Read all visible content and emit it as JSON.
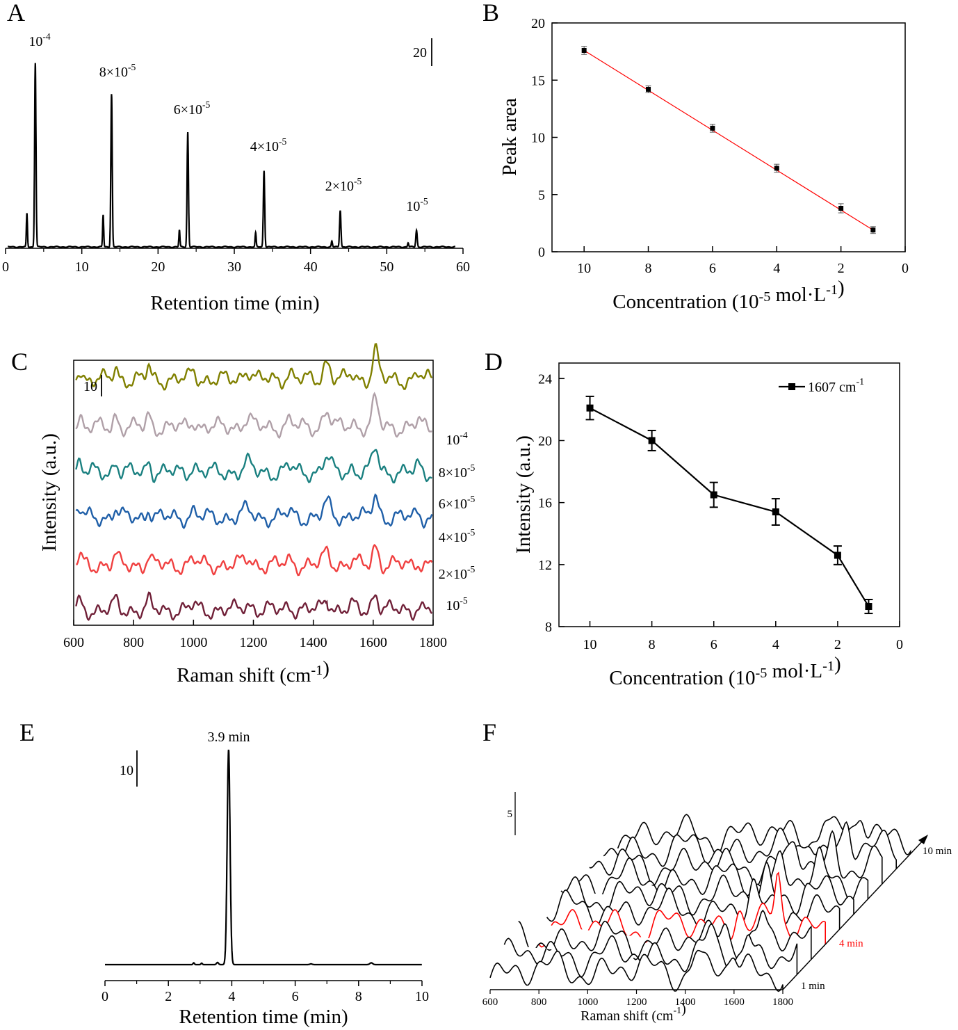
{
  "panels": [
    {
      "id": "A",
      "letter": "A",
      "type": "line",
      "xlabel": "Retention time (min)",
      "ylabel": "",
      "xlim": [
        0,
        60
      ],
      "xticks": [
        "0",
        "10",
        "20",
        "30",
        "40",
        "50",
        "60"
      ],
      "scale_bar": "20",
      "peaks": [
        {
          "label": "10",
          "exp": "-4",
          "time": 3.9,
          "height": 26.5,
          "pre_time": 2.8,
          "pre_height": 4.8
        },
        {
          "label": "8×10",
          "exp": "-5",
          "time": 13.9,
          "height": 22.0,
          "pre_time": 12.8,
          "pre_height": 4.6
        },
        {
          "label": "6×10",
          "exp": "-5",
          "time": 23.9,
          "height": 16.5,
          "pre_time": 22.8,
          "pre_height": 2.4
        },
        {
          "label": "4×10",
          "exp": "-5",
          "time": 33.9,
          "height": 11.0,
          "pre_time": 32.8,
          "pre_height": 2.0
        },
        {
          "label": "2×10",
          "exp": "-5",
          "time": 43.9,
          "height": 5.3,
          "pre_time": 42.8,
          "pre_height": 0.8
        },
        {
          "label": "10",
          "exp": "-5",
          "time": 53.9,
          "height": 2.4,
          "pre_time": 52.8,
          "pre_height": 0.6
        }
      ]
    },
    {
      "id": "B",
      "letter": "B",
      "type": "scatter",
      "xlabel": "Concentration (10",
      "xlabel_exp": "-5",
      "xlabel_mid": " mol·L",
      "xlabel_exp2": "-1",
      "xlabel_end": ")",
      "ylabel": "Peak area",
      "xlim": [
        11,
        0
      ],
      "ylim": [
        0,
        20
      ],
      "xticks": [
        "10",
        "8",
        "6",
        "4",
        "2",
        "0"
      ],
      "yticks": [
        "0",
        "5",
        "10",
        "15",
        "20"
      ],
      "x": [
        10,
        8,
        6,
        4,
        2,
        1
      ],
      "y": [
        17.6,
        14.2,
        10.8,
        7.3,
        3.8,
        1.9
      ],
      "err": [
        0.35,
        0.3,
        0.35,
        0.35,
        0.4,
        0.3
      ],
      "fit": {
        "x": [
          10,
          1
        ],
        "y": [
          17.6,
          1.9
        ]
      },
      "fit_color": "#ff0000"
    },
    {
      "id": "C",
      "letter": "C",
      "type": "line",
      "xlabel": "Raman shift (cm",
      "xlabel_exp": "-1",
      "xlabel_end": ")",
      "ylabel": "Intensity (a.u.)",
      "xlim": [
        600,
        1800
      ],
      "xticks": [
        "600",
        "800",
        "1000",
        "1200",
        "1400",
        "1600",
        "1800"
      ],
      "scale_bar": "10",
      "series": [
        {
          "label": "10",
          "exp": "-4",
          "color": "#808000",
          "base": 11,
          "amp": 1.0
        },
        {
          "label": "8×10",
          "exp": "-5",
          "color": "#b0a0a8",
          "base": 9.1,
          "amp": 0.9
        },
        {
          "label": "6×10",
          "exp": "-5",
          "color": "#1a8080",
          "base": 7.3,
          "amp": 0.85
        },
        {
          "label": "4×10",
          "exp": "-5",
          "color": "#1f5fa8",
          "base": 5.5,
          "amp": 0.75
        },
        {
          "label": "2×10",
          "exp": "-5",
          "color": "#f04040",
          "base": 3.6,
          "amp": 0.65
        },
        {
          "label": "10",
          "exp": "-5",
          "color": "#702038",
          "base": 1.8,
          "amp": 0.6
        }
      ]
    },
    {
      "id": "D",
      "letter": "D",
      "type": "line",
      "xlabel": "Concentration (10",
      "xlabel_exp": "-5",
      "xlabel_mid": " mol·L",
      "xlabel_exp2": "-1",
      "xlabel_end": ")",
      "ylabel": "Intensity (a.u.)",
      "xlim": [
        11,
        0
      ],
      "ylim": [
        8,
        25
      ],
      "xticks": [
        "10",
        "8",
        "6",
        "4",
        "2",
        "0"
      ],
      "yticks": [
        "8",
        "12",
        "16",
        "20",
        "24"
      ],
      "legend": "1607 cm",
      "legend_exp": "-1",
      "legend_loc": "top-right",
      "x": [
        10,
        8,
        6,
        4,
        2,
        1
      ],
      "y": [
        22.1,
        20.0,
        16.5,
        15.4,
        12.6,
        9.3
      ],
      "err": [
        0.75,
        0.65,
        0.8,
        0.85,
        0.6,
        0.45
      ]
    },
    {
      "id": "E",
      "letter": "E",
      "type": "line",
      "xlabel": "Retention time (min)",
      "ylabel": "",
      "xlim": [
        0,
        10
      ],
      "xticks": [
        "0",
        "2",
        "4",
        "6",
        "8",
        "10"
      ],
      "scale_bar": "10",
      "peak_label": "3.9 min",
      "peak": {
        "time": 3.9,
        "height": 30
      }
    },
    {
      "id": "F",
      "letter": "F",
      "type": "line",
      "xlabel": "Raman shift (cm",
      "xlabel_exp": "-1",
      "xlabel_end": ")",
      "xlim": [
        600,
        1800
      ],
      "xticks": [
        "600",
        "800",
        "1000",
        "1200",
        "1400",
        "1600",
        "1800"
      ],
      "scale_bar": "5",
      "time_labels": [
        "1 min",
        "4 min",
        "10 min"
      ],
      "highlight_color": "#ff0000"
    }
  ]
}
